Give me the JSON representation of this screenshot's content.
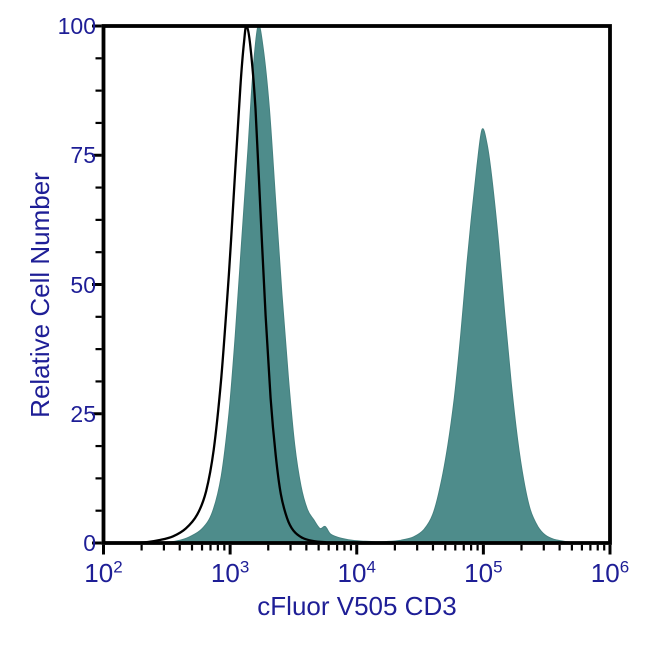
{
  "colors": {
    "background": "#ffffff",
    "axis_frame": "#000000",
    "axis_text": "#1e1e96",
    "filled_series_fill": "#4e8c8b",
    "filled_series_edge": "#45807f",
    "open_series_line": "#000000"
  },
  "axes": {
    "x": {
      "label": "cFluor V505 CD3",
      "scale": "log10",
      "tick_exponents": [
        2,
        3,
        4,
        5,
        6
      ],
      "tick_display_base": "10",
      "minor_ticks": "2-9 per decade",
      "range": [
        100,
        1000000
      ]
    },
    "y": {
      "label": "Relative Cell Number",
      "scale": "linear",
      "major_ticks": [
        0,
        25,
        50,
        75,
        100
      ],
      "minor_tick_step": 6.25,
      "range": [
        0,
        100
      ]
    }
  },
  "chart_data": {
    "type": "area",
    "subtype": "flow-cytometry-histogram-overlay",
    "title": "",
    "xlabel": "cFluor V505 CD3",
    "ylabel": "Relative Cell Number",
    "x_axis": {
      "scale": "log10",
      "min": 100,
      "max": 1000000,
      "tick_exponents": [
        2,
        3,
        4,
        5,
        6
      ]
    },
    "y_axis": {
      "min": 0,
      "max": 100,
      "major_ticks": [
        0,
        25,
        50,
        75,
        100
      ],
      "minor_step": 6.25
    },
    "grid": false,
    "legend": false,
    "peaks_summary": [
      {
        "series": "stained filled",
        "peak_x_approx": "1.6e3",
        "peak_y": 100
      },
      {
        "series": "stained filled",
        "peak_x_approx": "1.0e5",
        "peak_y": 80
      },
      {
        "series": "control open",
        "peak_x_approx": "1.3e3",
        "peak_y": 100
      }
    ],
    "series": [
      {
        "name": "cFluor V505 CD3 stained (filled)",
        "style": "filled",
        "points_log10x_y": [
          [
            2.45,
            0
          ],
          [
            2.58,
            0.4
          ],
          [
            2.68,
            1.2
          ],
          [
            2.78,
            2.8
          ],
          [
            2.86,
            6
          ],
          [
            2.93,
            13
          ],
          [
            2.99,
            25
          ],
          [
            3.04,
            40
          ],
          [
            3.09,
            58
          ],
          [
            3.14,
            76
          ],
          [
            3.18,
            91
          ],
          [
            3.22,
            100
          ],
          [
            3.26,
            96
          ],
          [
            3.31,
            84
          ],
          [
            3.36,
            66
          ],
          [
            3.41,
            48
          ],
          [
            3.46,
            32
          ],
          [
            3.51,
            19
          ],
          [
            3.56,
            11
          ],
          [
            3.61,
            6.5
          ],
          [
            3.66,
            4.5
          ],
          [
            3.71,
            2.8
          ],
          [
            3.75,
            3.2
          ],
          [
            3.79,
            1.8
          ],
          [
            3.84,
            1.2
          ],
          [
            3.9,
            0.8
          ],
          [
            3.97,
            0.5
          ],
          [
            4.05,
            0.35
          ],
          [
            4.15,
            0.25
          ],
          [
            4.25,
            0.3
          ],
          [
            4.35,
            0.55
          ],
          [
            4.45,
            1.2
          ],
          [
            4.53,
            2.6
          ],
          [
            4.6,
            5.5
          ],
          [
            4.66,
            11
          ],
          [
            4.72,
            19
          ],
          [
            4.77,
            28
          ],
          [
            4.82,
            40
          ],
          [
            4.87,
            54
          ],
          [
            4.91,
            64
          ],
          [
            4.95,
            73
          ],
          [
            4.99,
            80
          ],
          [
            5.03,
            77
          ],
          [
            5.07,
            70
          ],
          [
            5.12,
            58
          ],
          [
            5.17,
            44
          ],
          [
            5.22,
            31
          ],
          [
            5.27,
            20
          ],
          [
            5.32,
            12
          ],
          [
            5.37,
            6.5
          ],
          [
            5.43,
            3.2
          ],
          [
            5.49,
            1.5
          ],
          [
            5.56,
            0.7
          ],
          [
            5.64,
            0.3
          ],
          [
            5.75,
            0
          ]
        ]
      },
      {
        "name": "unstained control (open)",
        "style": "open",
        "points_log10x_y": [
          [
            2.0,
            0
          ],
          [
            2.2,
            0
          ],
          [
            2.35,
            0.2
          ],
          [
            2.45,
            0.6
          ],
          [
            2.55,
            1.3
          ],
          [
            2.65,
            2.8
          ],
          [
            2.74,
            5.5
          ],
          [
            2.81,
            10
          ],
          [
            2.87,
            18
          ],
          [
            2.93,
            32
          ],
          [
            2.99,
            52
          ],
          [
            3.04,
            72
          ],
          [
            3.08,
            88
          ],
          [
            3.11,
            97
          ],
          [
            3.13,
            100
          ],
          [
            3.16,
            96
          ],
          [
            3.2,
            84
          ],
          [
            3.24,
            64
          ],
          [
            3.28,
            44
          ],
          [
            3.32,
            28
          ],
          [
            3.36,
            17
          ],
          [
            3.4,
            9.5
          ],
          [
            3.45,
            4.8
          ],
          [
            3.5,
            2.4
          ],
          [
            3.57,
            1.0
          ],
          [
            3.65,
            0.4
          ],
          [
            3.75,
            0.15
          ],
          [
            3.9,
            0
          ],
          [
            6.0,
            0
          ]
        ]
      }
    ]
  }
}
